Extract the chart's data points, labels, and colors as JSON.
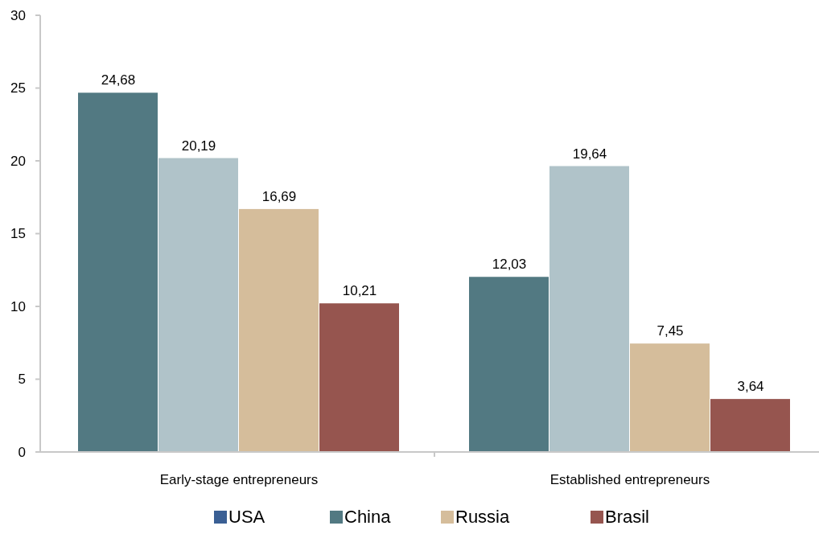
{
  "chart_data": {
    "type": "bar",
    "categories": [
      "Early-stage entrepreneurs",
      "Established entrepreneurs"
    ],
    "series": [
      {
        "name": "USA",
        "color": "#3a5f94",
        "values": [
          null,
          null
        ]
      },
      {
        "name": "China",
        "color": "#527982",
        "values": [
          24.68,
          12.03
        ],
        "value_labels": [
          "24,68",
          "12,03"
        ]
      },
      {
        "color": "#b0c3c9",
        "values": [
          20.19,
          19.64
        ],
        "value_labels": [
          "20,19",
          "19,64"
        ]
      },
      {
        "name": "Russia",
        "color": "#d5bd9b",
        "values": [
          16.69,
          7.45
        ],
        "value_labels": [
          "16,69",
          "7,45"
        ]
      },
      {
        "name": "Brasil",
        "color": "#96554f",
        "values": [
          10.21,
          3.64
        ],
        "value_labels": [
          "10,21",
          "3,64"
        ]
      }
    ],
    "ylim": [
      0,
      30
    ],
    "yticks": [
      0,
      5,
      10,
      15,
      20,
      25,
      30
    ],
    "grid": false,
    "legend": "bottom"
  }
}
